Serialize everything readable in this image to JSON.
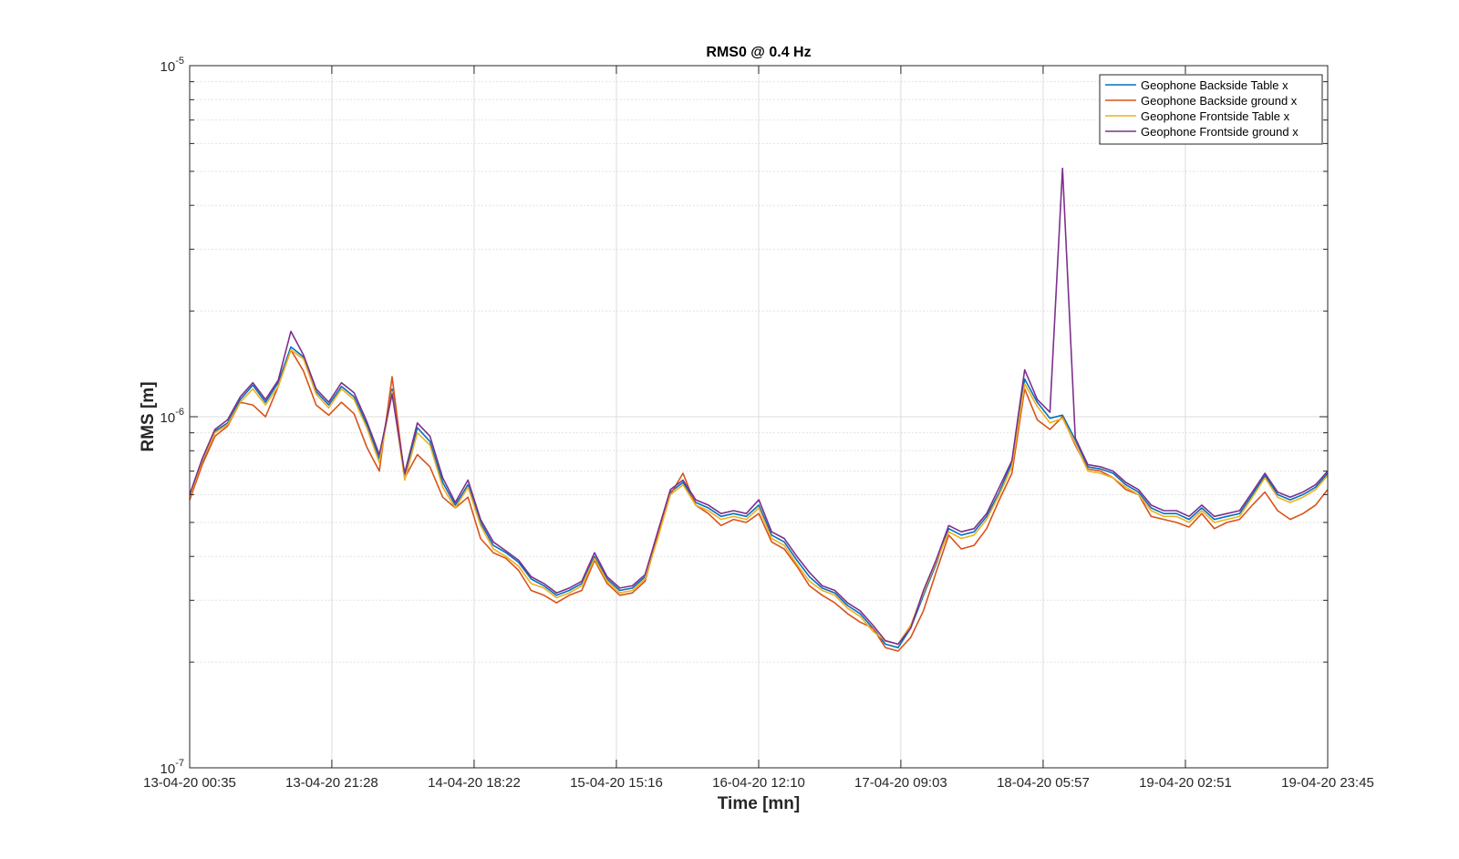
{
  "chart_data": {
    "type": "line",
    "title": "RMS0 @ 0.4 Hz",
    "xlabel": "Time [mn]",
    "ylabel": "RMS [m]",
    "y_scale": "log",
    "ylim": [
      1e-07,
      1e-05
    ],
    "y_ticks": [
      {
        "value": 1e-07,
        "base": "10",
        "exp": "-7"
      },
      {
        "value": 1e-06,
        "base": "10",
        "exp": "-6"
      },
      {
        "value": 1e-05,
        "base": "10",
        "exp": "-5"
      }
    ],
    "x_ticks": [
      "13-04-20 00:35",
      "13-04-20 21:28",
      "14-04-20 18:22",
      "15-04-20 15:16",
      "16-04-20 12:10",
      "17-04-20 09:03",
      "18-04-20 05:57",
      "19-04-20 02:51",
      "19-04-20 23:45"
    ],
    "xlim": [
      "13-04-20 00:35",
      "19-04-20 23:45"
    ],
    "grid": true,
    "legend_position": "top-right",
    "x": [
      "13-04-20 00:35",
      "13-04-20 02:26",
      "13-04-20 04:18",
      "13-04-20 06:09",
      "13-04-20 08:01",
      "13-04-20 09:52",
      "13-04-20 11:44",
      "13-04-20 13:35",
      "13-04-20 15:27",
      "13-04-20 17:18",
      "13-04-20 19:10",
      "13-04-20 21:01",
      "13-04-20 22:53",
      "14-04-20 00:44",
      "14-04-20 02:36",
      "14-04-20 04:27",
      "14-04-20 06:19",
      "14-04-20 08:10",
      "14-04-20 10:02",
      "14-04-20 11:53",
      "14-04-20 13:45",
      "14-04-20 15:36",
      "14-04-20 17:28",
      "14-04-20 19:19",
      "14-04-20 21:11",
      "14-04-20 23:02",
      "15-04-20 00:54",
      "15-04-20 02:45",
      "15-04-20 04:37",
      "15-04-20 06:28",
      "15-04-20 08:20",
      "15-04-20 10:11",
      "15-04-20 12:03",
      "15-04-20 13:54",
      "15-04-20 15:46",
      "15-04-20 17:37",
      "15-04-20 19:29",
      "15-04-20 21:20",
      "15-04-20 23:12",
      "16-04-20 01:03",
      "16-04-20 02:55",
      "16-04-20 04:46",
      "16-04-20 06:38",
      "16-04-20 08:29",
      "16-04-20 10:21",
      "16-04-20 12:12",
      "16-04-20 14:04",
      "16-04-20 15:55",
      "16-04-20 17:47",
      "16-04-20 19:38",
      "16-04-20 21:30",
      "16-04-20 23:21",
      "17-04-20 01:13",
      "17-04-20 03:04",
      "17-04-20 04:56",
      "17-04-20 06:47",
      "17-04-20 08:39",
      "17-04-20 10:30",
      "17-04-20 12:22",
      "17-04-20 14:13",
      "17-04-20 16:05",
      "17-04-20 17:56",
      "17-04-20 19:48",
      "17-04-20 21:39",
      "17-04-20 23:31",
      "18-04-20 01:22",
      "18-04-20 03:14",
      "18-04-20 05:05",
      "18-04-20 06:57",
      "18-04-20 08:48",
      "18-04-20 10:40",
      "18-04-20 12:31",
      "18-04-20 14:23",
      "18-04-20 16:14",
      "18-04-20 18:06",
      "18-04-20 19:57",
      "18-04-20 21:49",
      "18-04-20 23:40",
      "19-04-20 01:32",
      "19-04-20 03:23",
      "19-04-20 05:15",
      "19-04-20 07:06",
      "19-04-20 08:58",
      "19-04-20 10:49",
      "19-04-20 12:41",
      "19-04-20 14:32",
      "19-04-20 16:24",
      "19-04-20 18:15",
      "19-04-20 20:07",
      "19-04-20 21:58",
      "19-04-20 23:45"
    ],
    "series": [
      {
        "name": "Geophone Backside Table x",
        "color": "#0072BD",
        "values": [
          5.8e-07,
          7.4e-07,
          9.1e-07,
          9.6e-07,
          1.12e-06,
          1.23e-06,
          1.1e-06,
          1.25e-06,
          1.58e-06,
          1.48e-06,
          1.18e-06,
          1.08e-06,
          1.22e-06,
          1.14e-06,
          9.5e-07,
          7.6e-07,
          1.2e-06,
          6.8e-07,
          9.3e-07,
          8.5e-07,
          6.5e-07,
          5.6e-07,
          6.4e-07,
          5e-07,
          4.3e-07,
          4.1e-07,
          3.85e-07,
          3.45e-07,
          3.3e-07,
          3.1e-07,
          3.2e-07,
          3.35e-07,
          4e-07,
          3.45e-07,
          3.2e-07,
          3.25e-07,
          3.5e-07,
          4.6e-07,
          6.1e-07,
          6.5e-07,
          5.7e-07,
          5.5e-07,
          5.2e-07,
          5.3e-07,
          5.2e-07,
          5.6e-07,
          4.6e-07,
          4.4e-07,
          3.9e-07,
          3.5e-07,
          3.25e-07,
          3.15e-07,
          2.9e-07,
          2.75e-07,
          2.5e-07,
          2.25e-07,
          2.2e-07,
          2.5e-07,
          3.1e-07,
          3.8e-07,
          4.8e-07,
          4.6e-07,
          4.7e-07,
          5.2e-07,
          6.1e-07,
          7.4e-07,
          1.28e-06,
          1.1e-06,
          9.9e-07,
          1.01e-06,
          8.6e-07,
          7.2e-07,
          7.1e-07,
          6.9e-07,
          6.4e-07,
          6.1e-07,
          5.5e-07,
          5.3e-07,
          5.3e-07,
          5.1e-07,
          5.5e-07,
          5.1e-07,
          5.2e-07,
          5.3e-07,
          6e-07,
          6.8e-07,
          6e-07,
          5.8e-07,
          6e-07,
          6.3e-07,
          6.9e-07
        ]
      },
      {
        "name": "Geophone Backside ground x",
        "color": "#D95319",
        "values": [
          5.8e-07,
          7.3e-07,
          8.8e-07,
          9.4e-07,
          1.1e-06,
          1.08e-06,
          1e-06,
          1.22e-06,
          1.55e-06,
          1.35e-06,
          1.08e-06,
          1.01e-06,
          1.1e-06,
          1.02e-06,
          8.2e-07,
          7e-07,
          1.3e-06,
          6.7e-07,
          7.8e-07,
          7.2e-07,
          5.9e-07,
          5.5e-07,
          5.9e-07,
          4.5e-07,
          4.1e-07,
          3.95e-07,
          3.65e-07,
          3.2e-07,
          3.1e-07,
          2.95e-07,
          3.1e-07,
          3.2e-07,
          3.9e-07,
          3.35e-07,
          3.1e-07,
          3.15e-07,
          3.4e-07,
          4.6e-07,
          6e-07,
          6.9e-07,
          5.6e-07,
          5.3e-07,
          4.9e-07,
          5.1e-07,
          5e-07,
          5.3e-07,
          4.4e-07,
          4.2e-07,
          3.75e-07,
          3.3e-07,
          3.1e-07,
          2.95e-07,
          2.75e-07,
          2.6e-07,
          2.5e-07,
          2.2e-07,
          2.15e-07,
          2.35e-07,
          2.8e-07,
          3.6e-07,
          4.6e-07,
          4.2e-07,
          4.3e-07,
          4.8e-07,
          5.8e-07,
          6.9e-07,
          1.2e-06,
          9.8e-07,
          9.2e-07,
          1e-06,
          8.3e-07,
          7.1e-07,
          7e-07,
          6.7e-07,
          6.2e-07,
          6e-07,
          5.2e-07,
          5.1e-07,
          5e-07,
          4.85e-07,
          5.3e-07,
          4.8e-07,
          5e-07,
          5.1e-07,
          5.6e-07,
          6.1e-07,
          5.4e-07,
          5.1e-07,
          5.3e-07,
          5.6e-07,
          6.2e-07
        ]
      },
      {
        "name": "Geophone Frontside Table x",
        "color": "#EDB120",
        "values": [
          5.9e-07,
          7.5e-07,
          9e-07,
          9.5e-07,
          1.1e-06,
          1.2e-06,
          1.08e-06,
          1.22e-06,
          1.55e-06,
          1.46e-06,
          1.16e-06,
          1.06e-06,
          1.2e-06,
          1.12e-06,
          9.3e-07,
          7.4e-07,
          1.18e-06,
          6.6e-07,
          9e-07,
          8.3e-07,
          6.3e-07,
          5.5e-07,
          6.3e-07,
          4.9e-07,
          4.2e-07,
          4e-07,
          3.75e-07,
          3.35e-07,
          3.25e-07,
          3.05e-07,
          3.15e-07,
          3.3e-07,
          3.95e-07,
          3.4e-07,
          3.15e-07,
          3.2e-07,
          3.45e-07,
          4.5e-07,
          6e-07,
          6.4e-07,
          5.6e-07,
          5.4e-07,
          5.1e-07,
          5.2e-07,
          5.1e-07,
          5.5e-07,
          4.5e-07,
          4.3e-07,
          3.8e-07,
          3.4e-07,
          3.2e-07,
          3.1e-07,
          2.85e-07,
          2.7e-07,
          2.45e-07,
          2.3e-07,
          2.25e-07,
          2.55e-07,
          3.15e-07,
          3.85e-07,
          4.7e-07,
          4.5e-07,
          4.6e-07,
          5.1e-07,
          6e-07,
          7.2e-07,
          1.24e-06,
          1.07e-06,
          9.6e-07,
          9.9e-07,
          8.4e-07,
          7e-07,
          6.9e-07,
          6.7e-07,
          6.3e-07,
          6e-07,
          5.4e-07,
          5.2e-07,
          5.2e-07,
          5e-07,
          5.4e-07,
          5e-07,
          5.1e-07,
          5.2e-07,
          5.9e-07,
          6.7e-07,
          5.9e-07,
          5.7e-07,
          5.9e-07,
          6.2e-07,
          6.8e-07
        ]
      },
      {
        "name": "Geophone Frontside ground x",
        "color": "#7E2F8E",
        "values": [
          6e-07,
          7.6e-07,
          9.2e-07,
          9.8e-07,
          1.14e-06,
          1.25e-06,
          1.12e-06,
          1.27e-06,
          1.75e-06,
          1.5e-06,
          1.2e-06,
          1.1e-06,
          1.25e-06,
          1.17e-06,
          9.7e-07,
          7.8e-07,
          1.16e-06,
          6.9e-07,
          9.6e-07,
          8.8e-07,
          6.7e-07,
          5.7e-07,
          6.6e-07,
          5.1e-07,
          4.4e-07,
          4.15e-07,
          3.9e-07,
          3.5e-07,
          3.35e-07,
          3.15e-07,
          3.25e-07,
          3.4e-07,
          4.1e-07,
          3.5e-07,
          3.25e-07,
          3.3e-07,
          3.55e-07,
          4.7e-07,
          6.2e-07,
          6.6e-07,
          5.8e-07,
          5.6e-07,
          5.3e-07,
          5.4e-07,
          5.3e-07,
          5.8e-07,
          4.7e-07,
          4.5e-07,
          4e-07,
          3.6e-07,
          3.3e-07,
          3.2e-07,
          2.95e-07,
          2.8e-07,
          2.55e-07,
          2.3e-07,
          2.25e-07,
          2.5e-07,
          3.2e-07,
          3.9e-07,
          4.9e-07,
          4.7e-07,
          4.8e-07,
          5.3e-07,
          6.3e-07,
          7.5e-07,
          1.36e-06,
          1.12e-06,
          1.03e-06,
          5.1e-06,
          8.7e-07,
          7.3e-07,
          7.2e-07,
          7e-07,
          6.5e-07,
          6.2e-07,
          5.6e-07,
          5.4e-07,
          5.4e-07,
          5.2e-07,
          5.6e-07,
          5.2e-07,
          5.3e-07,
          5.4e-07,
          6.1e-07,
          6.9e-07,
          6.1e-07,
          5.9e-07,
          6.1e-07,
          6.4e-07,
          7e-07
        ]
      }
    ]
  }
}
